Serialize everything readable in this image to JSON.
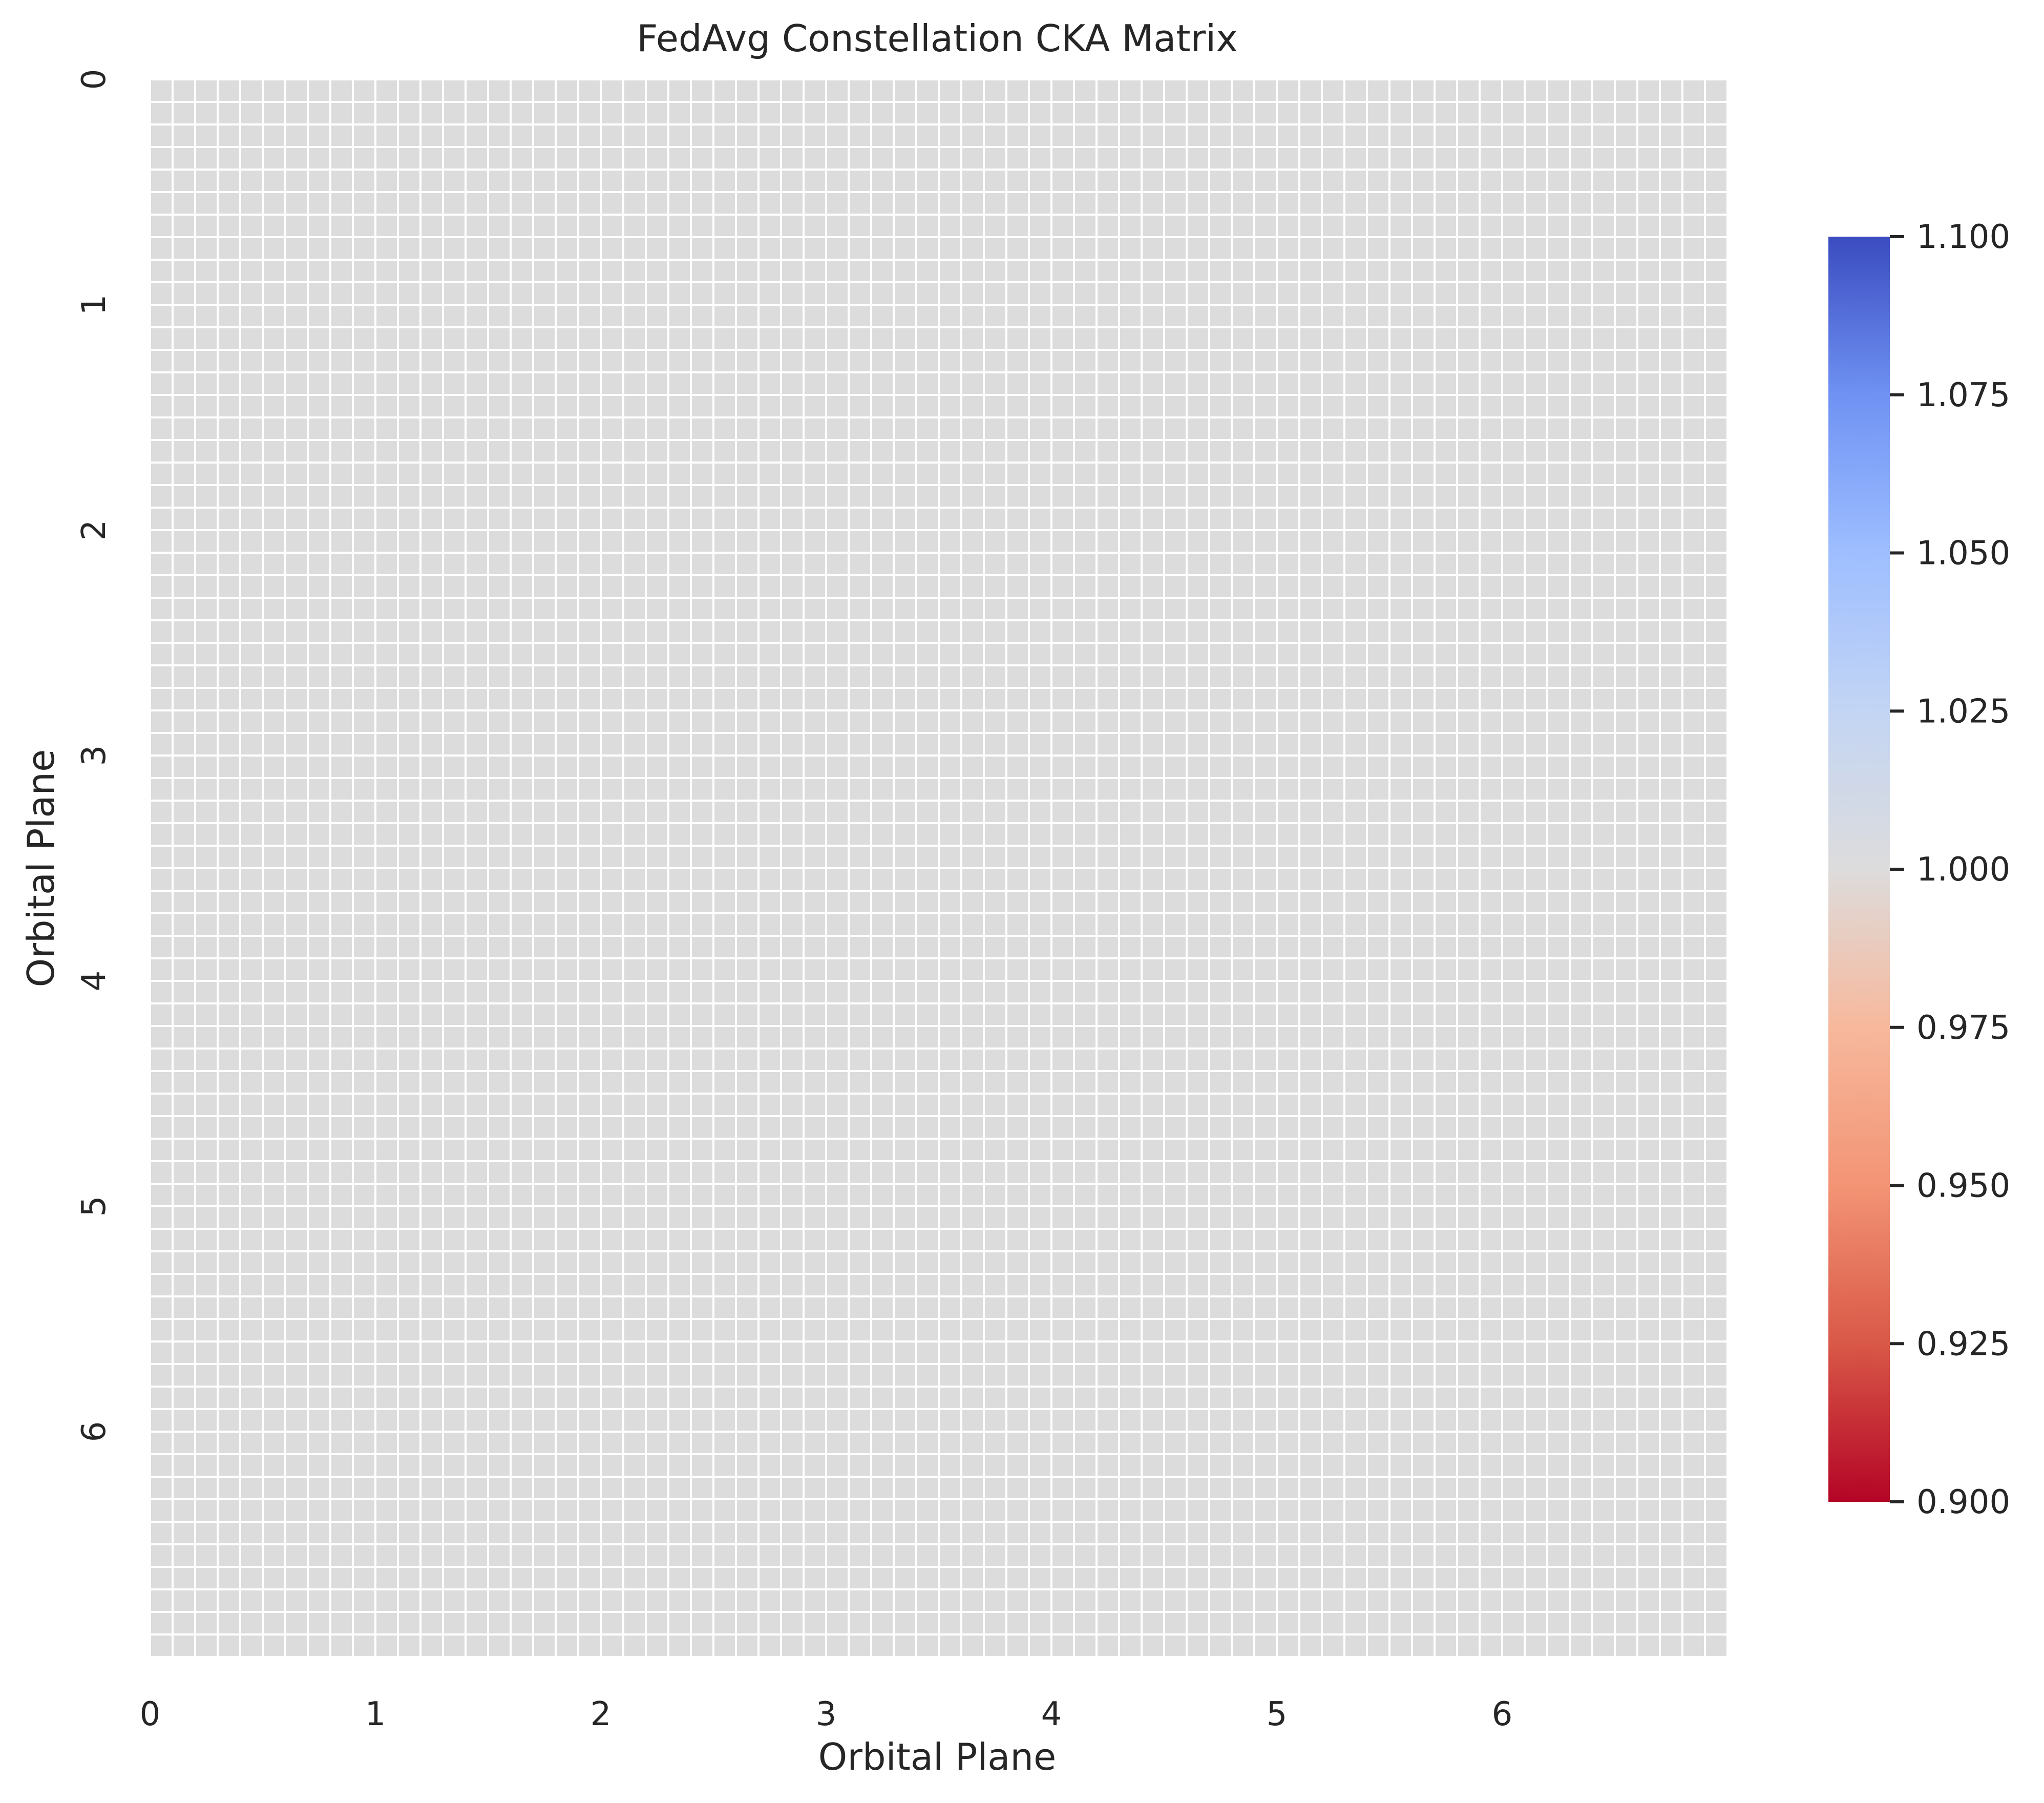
{
  "chart_data": {
    "type": "heatmap",
    "title": "FedAvg Constellation CKA Matrix",
    "xlabel": "Orbital Plane",
    "ylabel": "Orbital Plane",
    "grid_size": 70,
    "fill_value": 1.0,
    "x_tick_labels": [
      "0",
      "1",
      "2",
      "3",
      "4",
      "5",
      "6"
    ],
    "y_tick_labels": [
      "0",
      "1",
      "2",
      "3",
      "4",
      "5",
      "6"
    ],
    "tick_positions": [
      0,
      10,
      20,
      30,
      40,
      50,
      60
    ],
    "colorbar": {
      "colormap": "coolwarm",
      "vmin": 0.9,
      "vmax": 1.1,
      "ticks": [
        {
          "value": 0.9,
          "label": "0.900"
        },
        {
          "value": 0.925,
          "label": "0.925"
        },
        {
          "value": 0.95,
          "label": "0.950"
        },
        {
          "value": 0.975,
          "label": "0.975"
        },
        {
          "value": 1.0,
          "label": "1.000"
        },
        {
          "value": 1.025,
          "label": "1.025"
        },
        {
          "value": 1.05,
          "label": "1.050"
        },
        {
          "value": 1.075,
          "label": "1.075"
        },
        {
          "value": 1.1,
          "label": "1.100"
        }
      ],
      "color_stops": [
        {
          "value": 0.9,
          "color": "#b40426"
        },
        {
          "value": 0.925,
          "color": "#d95847"
        },
        {
          "value": 0.95,
          "color": "#f39475"
        },
        {
          "value": 0.975,
          "color": "#f7b89c"
        },
        {
          "value": 1.0,
          "color": "#dddcdc"
        },
        {
          "value": 1.025,
          "color": "#c3d5f4"
        },
        {
          "value": 1.05,
          "color": "#9ebeff"
        },
        {
          "value": 1.075,
          "color": "#6f92f3"
        },
        {
          "value": 1.1,
          "color": "#3b4cc0"
        }
      ]
    },
    "cell_line_color": "#ffffff",
    "grid": true
  }
}
